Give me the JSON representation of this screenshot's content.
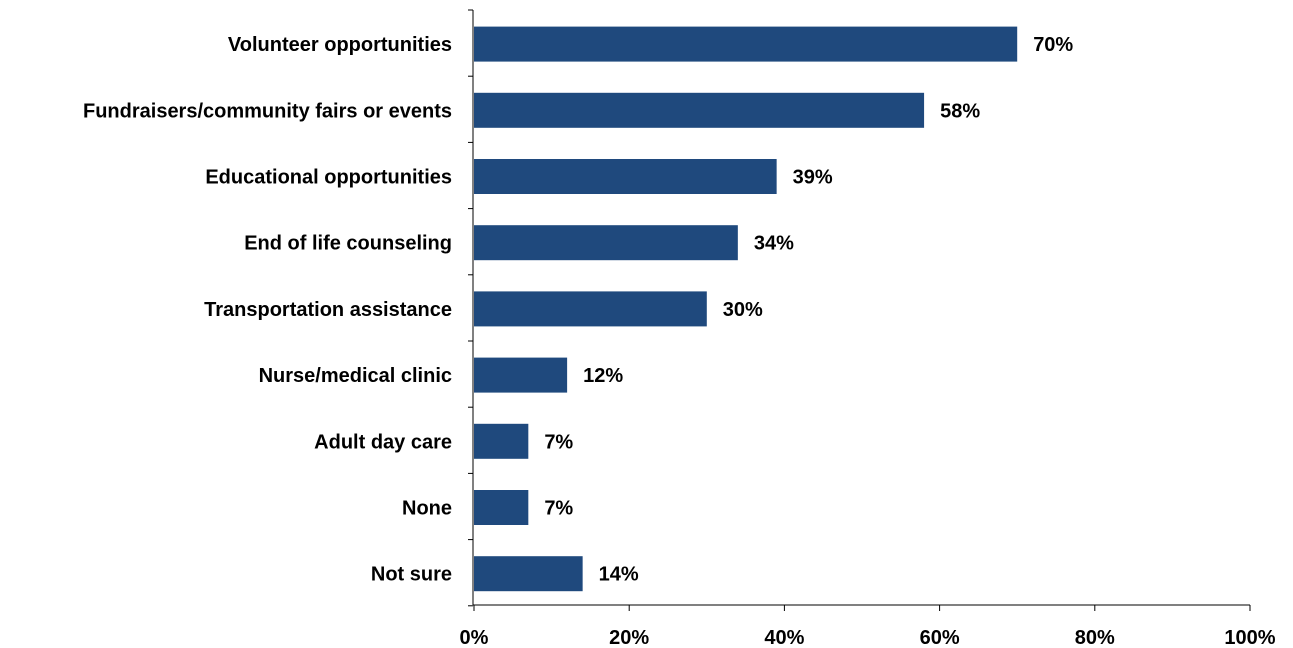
{
  "chart_data": {
    "type": "bar",
    "orientation": "horizontal",
    "title": "",
    "xlabel": "",
    "ylabel": "",
    "categories": [
      "Volunteer opportunities",
      "Fundraisers/community fairs or events",
      "Educational opportunities",
      "End of life counseling",
      "Transportation assistance",
      "Nurse/medical clinic",
      "Adult day care",
      "None",
      "Not sure"
    ],
    "values": [
      70,
      58,
      39,
      34,
      30,
      12,
      7,
      7,
      14
    ],
    "data_labels": [
      "70%",
      "58%",
      "39%",
      "34%",
      "30%",
      "12%",
      "7%",
      "7%",
      "14%"
    ],
    "xlim": [
      0,
      100
    ],
    "x_ticks": [
      0,
      20,
      40,
      60,
      80,
      100
    ],
    "x_tick_labels": [
      "0%",
      "20%",
      "40%",
      "60%",
      "80%",
      "100%"
    ],
    "grid": false,
    "legend": "none",
    "bar_color": "#1f497d"
  }
}
